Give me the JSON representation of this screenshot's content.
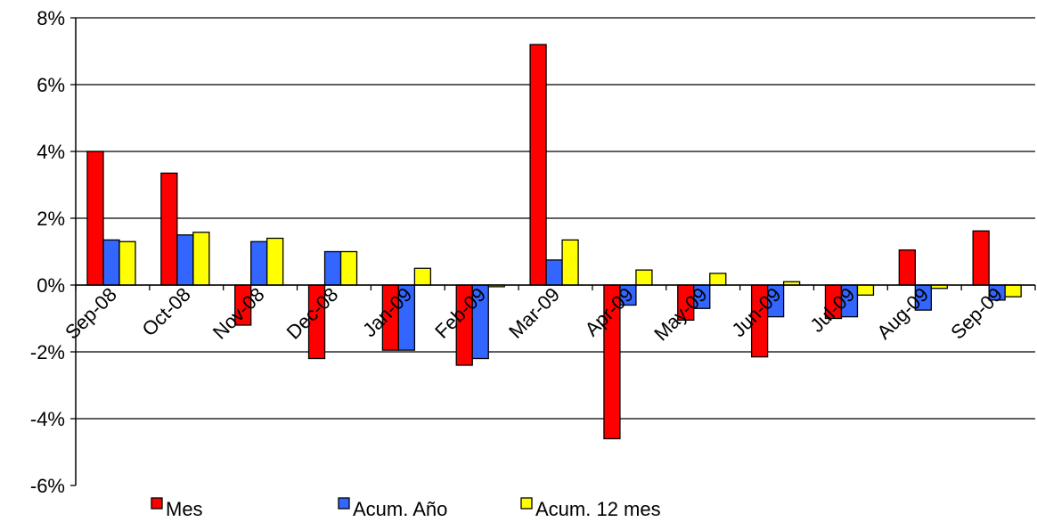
{
  "chart_data": {
    "type": "bar",
    "title": "",
    "xlabel": "",
    "ylabel": "",
    "ylim": [
      -6,
      8
    ],
    "y_ticks": [
      -6,
      -4,
      -2,
      0,
      2,
      4,
      6,
      8
    ],
    "y_tick_format": "%",
    "grid": "horizontal",
    "legend_position": "bottom",
    "categories": [
      "Sep-08",
      "Oct-08",
      "Nov-08",
      "Dec-08",
      "Jan-09",
      "Feb-09",
      "Mar-09",
      "Apr-09",
      "May-09",
      "Jun-09",
      "Jul-09",
      "Aug-09",
      "Sep-09"
    ],
    "series": [
      {
        "name": "Mes",
        "color": "#ff0000",
        "values": [
          4.0,
          3.35,
          -1.2,
          -2.2,
          -1.95,
          -2.4,
          7.2,
          -4.6,
          -1.05,
          -2.15,
          -1.0,
          1.05,
          1.62
        ]
      },
      {
        "name": "Acum. Año",
        "color": "#3366ff",
        "values": [
          1.35,
          1.5,
          1.3,
          1.0,
          -1.95,
          -2.2,
          0.75,
          -0.6,
          -0.7,
          -0.95,
          -0.95,
          -0.75,
          -0.45
        ]
      },
      {
        "name": "Acum. 12 mes",
        "color": "#ffff00",
        "values": [
          1.3,
          1.58,
          1.4,
          1.0,
          0.5,
          -0.05,
          1.35,
          0.45,
          0.35,
          0.1,
          -0.3,
          -0.1,
          -0.35
        ]
      }
    ]
  }
}
